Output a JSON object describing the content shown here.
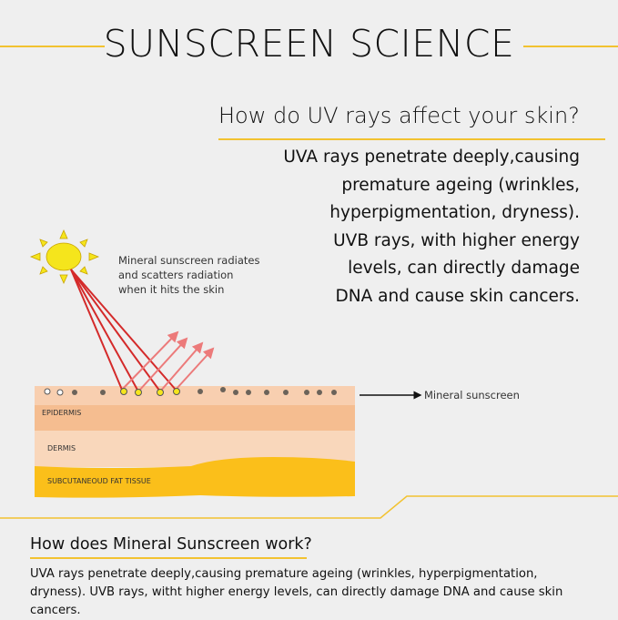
{
  "title": "SUNSCREEN SCIENCE",
  "section1": {
    "heading": "How do UV rays affect your skin?",
    "lines": [
      "UVA rays penetrate deeply,causing",
      "premature ageing (wrinkles,",
      "hyperpigmentation, dryness).",
      "UVB rays, with higher energy",
      "levels, can directly damage",
      "DNA and cause skin cancers."
    ]
  },
  "diagram": {
    "caption": [
      "Mineral sunscreen radiates",
      "and scatters radiation",
      "when it hits the skin"
    ],
    "pointer_label": "Mineral sunscreen",
    "layers": {
      "epidermis": "EPIDERMIS",
      "dermis": "DERMIS",
      "fat": "SUBCUTANEOUD FAT TISSUE"
    },
    "colors": {
      "sun": "#f5e51c",
      "ray": "#d42a2a",
      "reflected": "#ec7a7a",
      "fat": "#fbbf1a",
      "accent": "#f2c230"
    }
  },
  "section2": {
    "heading": "How does Mineral Sunscreen work?",
    "lines": [
      "UVA rays penetrate deeply,causing premature ageing (wrinkles, hyperpigmentation,",
      "dryness). UVB rays, witht higher energy levels, can directly damage DNA and cause skin cancers."
    ]
  }
}
